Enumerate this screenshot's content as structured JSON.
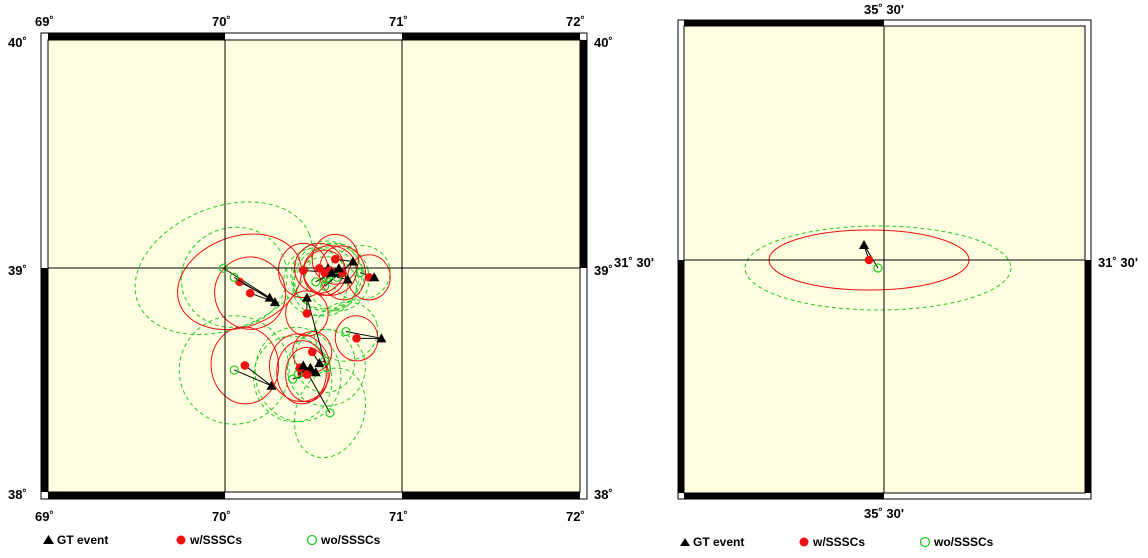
{
  "colors": {
    "land": "#fffee0",
    "frame": "#000000",
    "gt_event": "#000000",
    "with_sssc": "#ee1111",
    "without_sssc": "#22cc22"
  },
  "legend": {
    "gt_label": "GT event",
    "with_label": "w/SSSCs",
    "without_label": "wo/SSSCs"
  },
  "map_left": {
    "lon_range": [
      69,
      72
    ],
    "lat_range": [
      38,
      40
    ],
    "top_lon_ticks": [
      "69˚",
      "70˚",
      "71˚",
      "72˚"
    ],
    "bottom_lon_ticks": [
      "69˚",
      "70˚",
      "71˚",
      "72˚"
    ],
    "left_lat_ticks": [
      "40˚",
      "39˚",
      "38˚"
    ],
    "right_lat_ticks": [
      "40˚",
      "39˚",
      "38˚"
    ],
    "events": [
      {
        "gt": [
          70.25,
          38.86
        ],
        "w": [
          70.08,
          38.93
        ],
        "wo": [
          69.99,
          38.99
        ],
        "we": [
          0.36,
          0.2,
          20
        ],
        "woe": [
          0.52,
          0.27,
          22
        ]
      },
      {
        "gt": [
          70.28,
          38.84
        ],
        "w": [
          70.14,
          38.88
        ],
        "wo": [
          70.05,
          38.95
        ],
        "we": [
          0.2,
          0.16,
          15
        ],
        "woe": [
          0.3,
          0.22,
          18
        ]
      },
      {
        "gt": [
          70.26,
          38.47
        ],
        "w": [
          70.11,
          38.56
        ],
        "wo": [
          70.05,
          38.54
        ],
        "we": [
          0.19,
          0.17,
          5
        ],
        "woe": [
          0.31,
          0.24,
          8
        ]
      },
      {
        "gt": [
          70.46,
          38.86
        ],
        "w": [
          70.46,
          38.79
        ],
        "wo": [
          70.57,
          38.55
        ],
        "we": [
          0.12,
          0.1,
          0
        ],
        "woe": [
          0.22,
          0.17,
          10
        ]
      },
      {
        "gt": [
          70.53,
          38.57
        ],
        "w": [
          70.49,
          38.62
        ],
        "wo": [
          70.56,
          38.58
        ],
        "we": [
          0.11,
          0.09,
          5
        ],
        "woe": [
          0.17,
          0.14,
          10
        ]
      },
      {
        "gt": [
          70.51,
          38.53
        ],
        "w": [
          70.43,
          38.53
        ],
        "wo": [
          70.38,
          38.5
        ],
        "we": [
          0.14,
          0.14,
          0
        ],
        "woe": [
          0.22,
          0.19,
          10
        ]
      },
      {
        "gt": [
          70.48,
          38.55
        ],
        "w": [
          70.42,
          38.55
        ],
        "wo": [
          70.41,
          38.52
        ],
        "we": [
          0.17,
          0.15,
          10
        ],
        "woe": [
          0.24,
          0.21,
          15
        ]
      },
      {
        "gt": [
          70.44,
          38.56
        ],
        "w": [
          70.46,
          38.52
        ],
        "wo": [
          70.59,
          38.35
        ],
        "we": [
          0.12,
          0.12,
          0
        ],
        "woe": [
          0.26,
          0.15,
          70
        ]
      },
      {
        "gt": [
          70.88,
          38.68
        ],
        "w": [
          70.74,
          38.68
        ],
        "wo": [
          70.68,
          38.71
        ],
        "we": [
          0.12,
          0.1,
          10
        ],
        "woe": [
          0.18,
          0.13,
          15
        ]
      },
      {
        "gt": [
          70.63,
          38.97
        ],
        "w": [
          70.44,
          38.98
        ],
        "wo": [
          70.58,
          38.95
        ],
        "we": [
          0.14,
          0.12,
          0
        ],
        "woe": [
          0.2,
          0.15,
          10
        ]
      },
      {
        "gt": [
          70.58,
          38.99
        ],
        "w": [
          70.53,
          38.99
        ],
        "wo": [
          70.57,
          38.94
        ],
        "we": [
          0.14,
          0.11,
          5
        ],
        "woe": [
          0.18,
          0.14,
          10
        ]
      },
      {
        "gt": [
          70.72,
          39.02
        ],
        "w": [
          70.62,
          39.03
        ],
        "wo": [
          70.56,
          38.91
        ],
        "we": [
          0.13,
          0.11,
          0
        ],
        "woe": [
          0.18,
          0.13,
          15
        ]
      },
      {
        "gt": [
          70.69,
          38.94
        ],
        "w": [
          70.66,
          38.97
        ],
        "wo": [
          70.63,
          38.95
        ],
        "we": [
          0.13,
          0.12,
          10
        ],
        "woe": [
          0.18,
          0.15,
          15
        ]
      },
      {
        "gt": [
          70.84,
          38.95
        ],
        "w": [
          70.81,
          38.95
        ],
        "wo": [
          70.76,
          38.97
        ],
        "we": [
          0.12,
          0.1,
          0
        ],
        "woe": [
          0.17,
          0.12,
          10
        ]
      },
      {
        "gt": [
          70.64,
          38.99
        ],
        "w": [
          70.59,
          38.98
        ],
        "wo": [
          70.57,
          38.96
        ],
        "we": [
          0.15,
          0.11,
          5
        ],
        "woe": [
          0.2,
          0.15,
          10
        ]
      },
      {
        "gt": [
          70.6,
          38.97
        ],
        "w": [
          70.56,
          38.97
        ],
        "wo": [
          70.51,
          38.93
        ],
        "we": [
          0.12,
          0.1,
          0
        ],
        "woe": [
          0.18,
          0.15,
          10
        ]
      }
    ]
  },
  "map_right": {
    "top_lon_tick": "35˚ 30'",
    "bottom_lon_tick": "35˚ 30'",
    "left_lat_tick": "31˚ 30'",
    "right_lat_tick": "31˚ 30'",
    "event": {
      "gt": [
        -0.2,
        0.15
      ],
      "w": [
        -0.15,
        0.0
      ],
      "wo": [
        -0.06,
        -0.08
      ],
      "we": [
        1.0,
        0.3,
        0
      ],
      "woe": [
        1.33,
        0.42,
        0
      ]
    }
  }
}
